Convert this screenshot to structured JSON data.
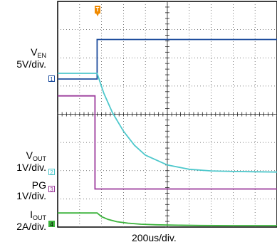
{
  "chart_data": {
    "type": "line",
    "title": "",
    "xlabel": "200us/div.",
    "time_per_div_us": 200,
    "x_divisions": 10,
    "y_divisions": 8,
    "grid": true,
    "trigger_marker": "T",
    "channels": [
      {
        "id": "1",
        "name": "V_EN",
        "label_main": "V",
        "label_sub": "EN",
        "scale": "5V/div.",
        "color": "#1f4e9e",
        "ground_div": 5.25,
        "x": [
          0,
          1.8,
          1.8,
          10
        ],
        "y": [
          0,
          0,
          1.4,
          1.4
        ]
      },
      {
        "id": "2",
        "name": "V_OUT",
        "label_main": "V",
        "label_sub": "OUT",
        "scale": "1V/div.",
        "color": "#4ec8cc",
        "ground_div": 1.95,
        "x": [
          0,
          1.8,
          2.1,
          2.5,
          3.0,
          3.5,
          4.0,
          5.0,
          6.0,
          7.0,
          8.0,
          9.0,
          10.0
        ],
        "y": [
          3.5,
          3.5,
          2.8,
          2.1,
          1.45,
          0.95,
          0.6,
          0.25,
          0.1,
          0.04,
          0.02,
          0.01,
          0.0
        ]
      },
      {
        "id": "3",
        "name": "PG",
        "label_main": "PG",
        "label_sub": "",
        "scale": "1V/div.",
        "color": "#9b3a9b",
        "ground_div": 1.35,
        "x": [
          0,
          1.7,
          1.7,
          10
        ],
        "y": [
          3.3,
          3.3,
          0,
          0
        ]
      },
      {
        "id": "4",
        "name": "I_OUT",
        "label_main": "I",
        "label_sub": "OUT",
        "scale": "2A/div.",
        "color": "#3bb33b",
        "ground_div": 0.05,
        "x": [
          0,
          1.8,
          2.0,
          2.3,
          2.7,
          3.2,
          3.8,
          4.5,
          5.5,
          6.5,
          8.0,
          10.0
        ],
        "y": [
          0.45,
          0.45,
          0.32,
          0.22,
          0.14,
          0.09,
          0.05,
          0.03,
          0.015,
          0.005,
          0.0,
          0.0
        ]
      }
    ]
  }
}
